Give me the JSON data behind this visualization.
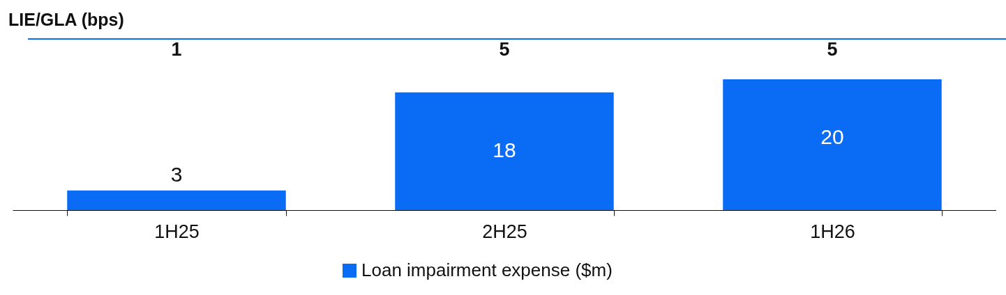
{
  "chart_data": {
    "type": "bar",
    "title": "LIE/GLA (bps)",
    "categories": [
      "1H25",
      "2H25",
      "1H26"
    ],
    "series": [
      {
        "name": "Loan impairment expense ($m)",
        "color": "#0a6cf5",
        "values": [
          3,
          18,
          20
        ]
      }
    ],
    "data_labels": true,
    "annotations": [
      "1",
      "5",
      "5"
    ],
    "grid": false,
    "legend": "bottom"
  }
}
